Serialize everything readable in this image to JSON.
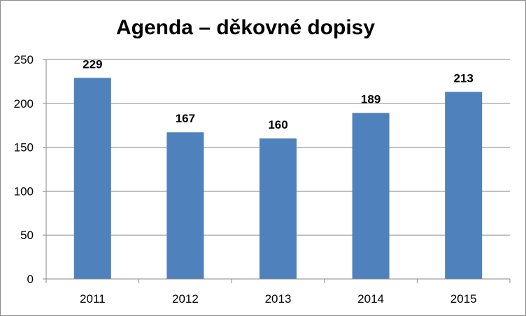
{
  "chart_data": {
    "type": "bar",
    "title": "Agenda – děkovné dopisy",
    "categories": [
      "2011",
      "2012",
      "2013",
      "2014",
      "2015"
    ],
    "values": [
      229,
      167,
      160,
      189,
      213
    ],
    "ylim": [
      0,
      250
    ],
    "yticks": [
      "0",
      "50",
      "100",
      "150",
      "200",
      "250"
    ],
    "grid": true,
    "legend": "none",
    "data_labels": true,
    "colors": {
      "bar": "#4F81BD",
      "grid": "#868686",
      "axis": "#868686",
      "text": "#000000"
    }
  }
}
